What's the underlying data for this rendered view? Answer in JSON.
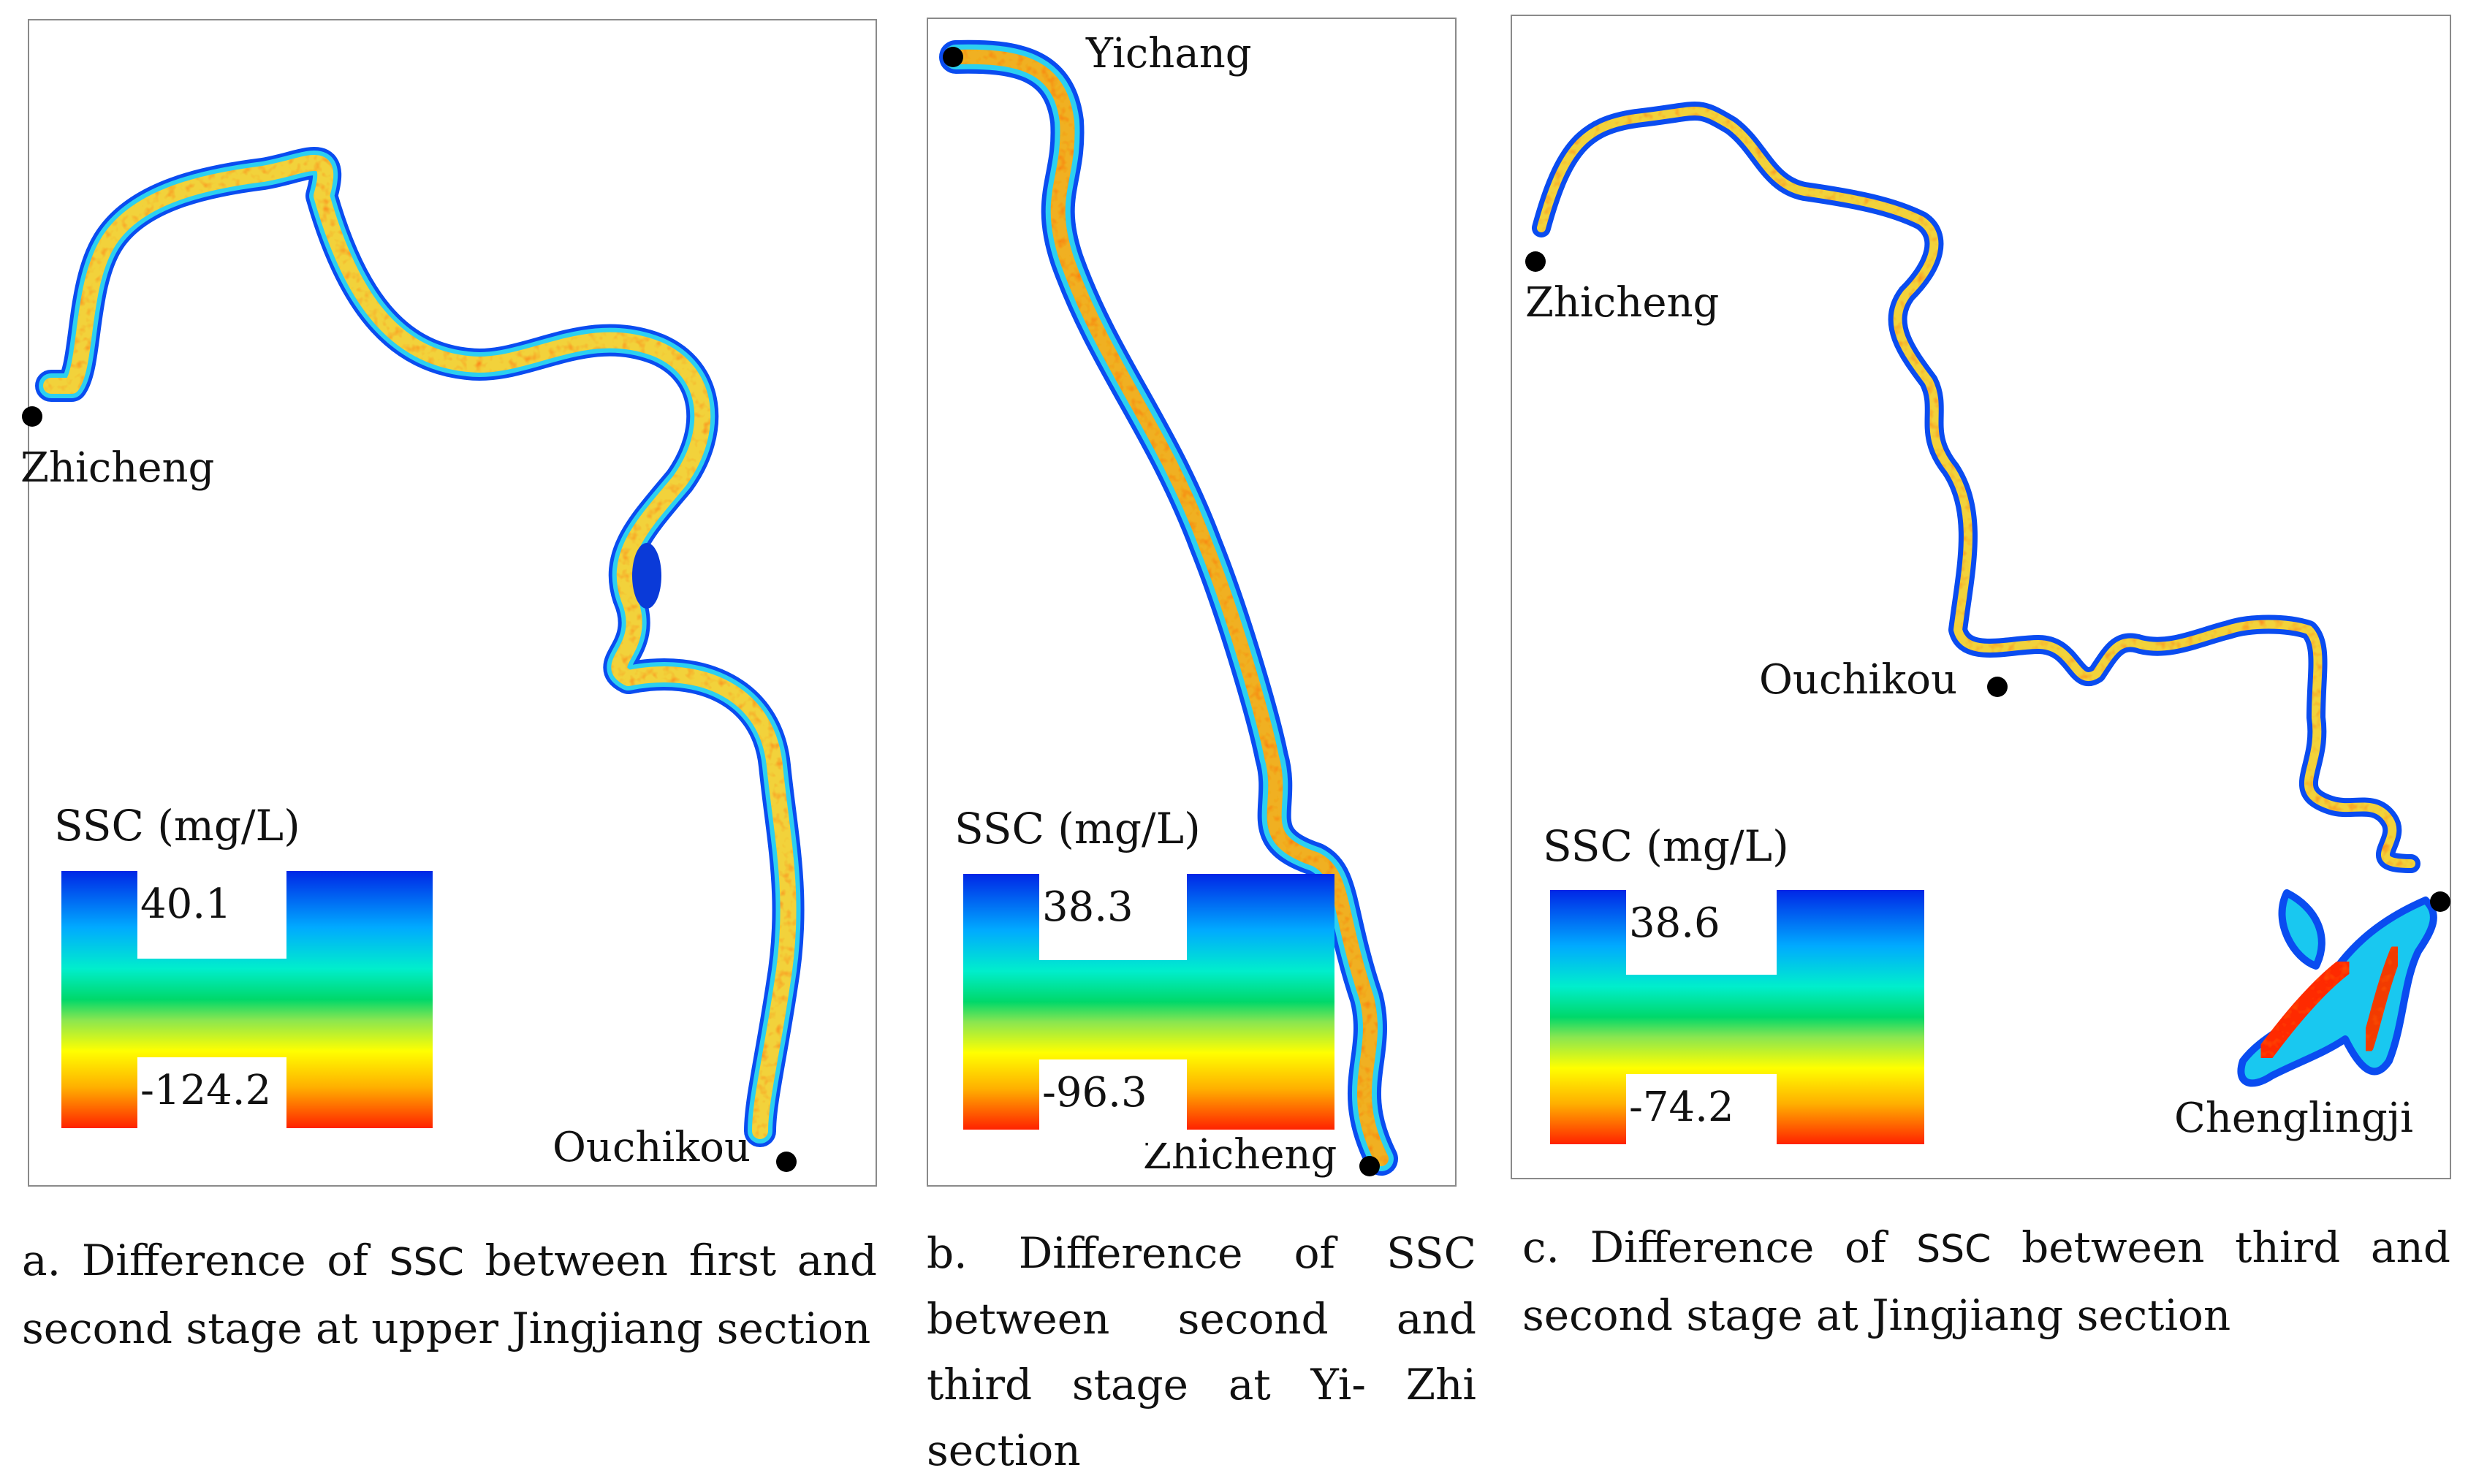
{
  "panels": [
    {
      "id": "a",
      "places": [
        "Zhicheng",
        "Ouchikou"
      ],
      "legend": {
        "title": "SSC (mg/L)",
        "max": "40.1",
        "min": "-124.2"
      },
      "caption": {
        "letter": "a.",
        "text1": " Difference of ",
        "ssc": "SSC",
        "text2": " between first and second stage at upper Jingjiang section"
      }
    },
    {
      "id": "b",
      "places": [
        "Yichang",
        "Zhicheng"
      ],
      "legend": {
        "title": "SSC (mg/L)",
        "max": "38.3",
        "min": "-96.3"
      },
      "caption": {
        "text": "b. Difference of SSC between second and third stage at Yi- Zhi section"
      }
    },
    {
      "id": "c",
      "places": [
        "Zhicheng",
        "Ouchikou",
        "Chenglingji"
      ],
      "legend": {
        "title": "SSC (mg/L)",
        "max": "38.6",
        "min": "-74.2"
      },
      "caption": {
        "text1": "c. Difference of ",
        "ssc": "SSC",
        "text2": " between third and second stage at Jingjiang section"
      }
    }
  ],
  "colors": {
    "scale_high": "#0026e6",
    "scale_mid": "#00d86a",
    "scale_low": "#ff2200",
    "river_body": "#f2d23a",
    "panel_border": "#8a8a8a"
  },
  "icons": [
    "station-dot-icon"
  ]
}
